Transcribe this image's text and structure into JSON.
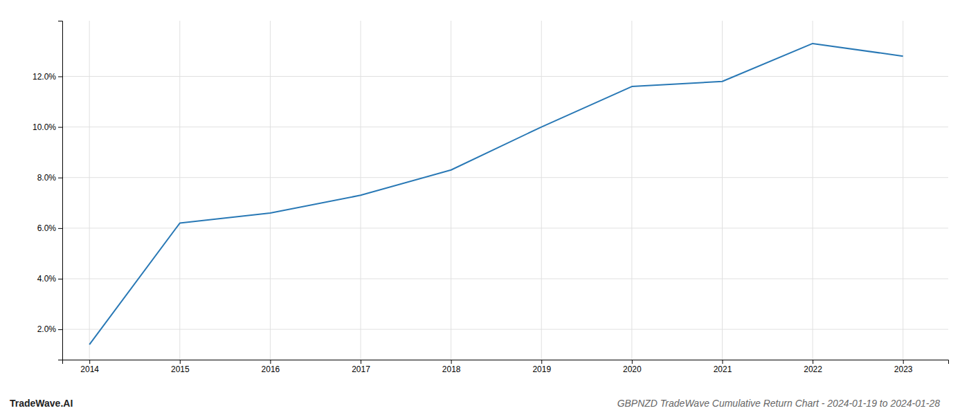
{
  "chart_data": {
    "type": "line",
    "title": "GBPNZD TradeWave Cumulative Return Chart - 2024-01-19 to 2024-01-28",
    "annotations": [
      "TradeWave.AI"
    ],
    "x": [
      2014,
      2015,
      2016,
      2017,
      2018,
      2019,
      2020,
      2021,
      2022,
      2023
    ],
    "values": [
      1.4,
      6.2,
      6.6,
      7.3,
      8.3,
      10.0,
      11.6,
      11.8,
      13.3,
      12.8
    ],
    "color": "#2878b5",
    "xlim": [
      2013.7,
      2023.5
    ],
    "xticks": [
      2014,
      2015,
      2016,
      2017,
      2018,
      2019,
      2020,
      2021,
      2022,
      2023
    ],
    "ylim": [
      0.8,
      14.2
    ],
    "yticks": [
      {
        "value": 2.0,
        "label": "2.0%"
      },
      {
        "value": 4.0,
        "label": "4.0%"
      },
      {
        "value": 6.0,
        "label": "6.0%"
      },
      {
        "value": 8.0,
        "label": "8.0%"
      },
      {
        "value": 10.0,
        "label": "10.0%"
      },
      {
        "value": 12.0,
        "label": "12.0%"
      }
    ],
    "grid": true
  }
}
